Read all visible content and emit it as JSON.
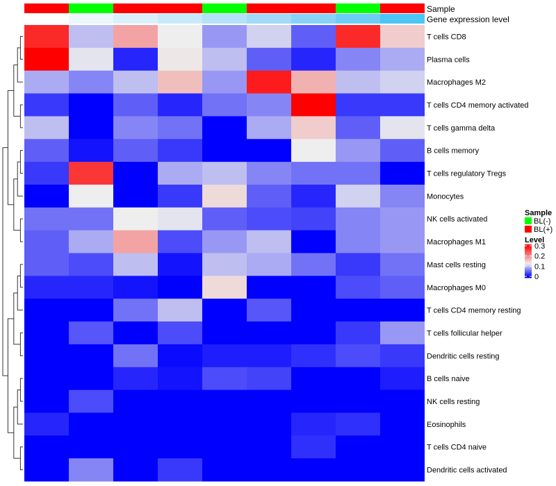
{
  "chart_data": {
    "type": "heatmap",
    "annotation_labels": [
      "Sample",
      "Gene expression level"
    ],
    "sample_groups": [
      "BL(+)",
      "BL(-)",
      "BL(+)",
      "BL(+)",
      "BL(-)",
      "BL(+)",
      "BL(+)",
      "BL(-)",
      "BL(+)"
    ],
    "sample_colors": {
      "BL(-)": "#00ff00",
      "BL(+)": "#ff0000"
    },
    "gene_expression_colors": [
      "#ffffff",
      "#ebf6fd",
      "#dcf0fb",
      "#c9eafb",
      "#b4e2f8",
      "#a1dbf7",
      "#87d3f8",
      "#6dcdf5",
      "#4bc6f5"
    ],
    "rows": [
      "T cells CD8",
      "Plasma cells",
      "Macrophages M2",
      "T cells CD4 memory activated",
      "T cells gamma delta",
      "B cells memory",
      "T cells regulatory  Tregs",
      "Monocytes",
      "NK cells activated",
      "Macrophages M1",
      "Mast cells resting",
      "Macrophages M0",
      "T cells CD4 memory resting",
      "T cells follicular helper",
      "Dendritic cells resting",
      "B cells naive",
      "NK cells resting",
      "Eosinophils",
      "T cells CD4 naive",
      "Dendritic cells activated"
    ],
    "values": [
      [
        0.27,
        0.1,
        0.18,
        0.125,
        0.08,
        0.11,
        0.05,
        0.27,
        0.15
      ],
      [
        0.3,
        0.12,
        0.02,
        0.13,
        0.1,
        0.05,
        0.02,
        0.07,
        0.09
      ],
      [
        0.09,
        0.07,
        0.1,
        0.16,
        0.08,
        0.28,
        0.17,
        0.1,
        0.11
      ],
      [
        0.03,
        0.0,
        0.05,
        0.02,
        0.06,
        0.07,
        0.3,
        0.03,
        0.03
      ],
      [
        0.1,
        0.0,
        0.07,
        0.06,
        0.0,
        0.09,
        0.15,
        0.05,
        0.12
      ],
      [
        0.05,
        0.01,
        0.05,
        0.03,
        0.0,
        0.0,
        0.125,
        0.08,
        0.05
      ],
      [
        0.03,
        0.26,
        0.0,
        0.09,
        0.1,
        0.07,
        0.06,
        0.06,
        0.0
      ],
      [
        0.0,
        0.125,
        0.0,
        0.03,
        0.14,
        0.05,
        0.02,
        0.11,
        0.07
      ],
      [
        0.06,
        0.06,
        0.125,
        0.12,
        0.05,
        0.04,
        0.035,
        0.07,
        0.08
      ],
      [
        0.05,
        0.09,
        0.18,
        0.04,
        0.08,
        0.1,
        0.0,
        0.07,
        0.08
      ],
      [
        0.05,
        0.04,
        0.1,
        0.01,
        0.1,
        0.09,
        0.06,
        0.03,
        0.06
      ],
      [
        0.02,
        0.02,
        0.01,
        0.0,
        0.14,
        0.0,
        0.0,
        0.04,
        0.05
      ],
      [
        0.0,
        0.0,
        0.06,
        0.1,
        0.0,
        0.045,
        0.0,
        0.0,
        0.0
      ],
      [
        0.0,
        0.045,
        0.0,
        0.04,
        0.0,
        0.0,
        0.0,
        0.03,
        0.08
      ],
      [
        0.0,
        0.0,
        0.06,
        0.005,
        0.015,
        0.015,
        0.025,
        0.04,
        0.03
      ],
      [
        0.0,
        0.0,
        0.02,
        0.01,
        0.04,
        0.035,
        0.0,
        0.0,
        0.015
      ],
      [
        0.0,
        0.04,
        0.0,
        0.0,
        0.0,
        0.0,
        0.0,
        0.0,
        0.0
      ],
      [
        0.02,
        0.0,
        0.0,
        0.0,
        0.0,
        0.0,
        0.02,
        0.025,
        0.0
      ],
      [
        0.0,
        0.0,
        0.0,
        0.0,
        0.0,
        0.0,
        0.025,
        0.0,
        0.0
      ],
      [
        0.0,
        0.07,
        0.0,
        0.03,
        0.0,
        0.0,
        0.0,
        0.0,
        0.0
      ]
    ],
    "color_scale": {
      "low": "#0000ff",
      "mid": "#eeeeee",
      "high": "#ff0000",
      "range": [
        0,
        0.3
      ]
    },
    "legend": {
      "sample_title": "Sample",
      "sample_entries": [
        "BL(-)",
        "BL(+)"
      ],
      "level_title": "Level",
      "level_ticks": [
        "0.3",
        "0.2",
        "0.1",
        "0"
      ],
      "placement": "right"
    }
  }
}
